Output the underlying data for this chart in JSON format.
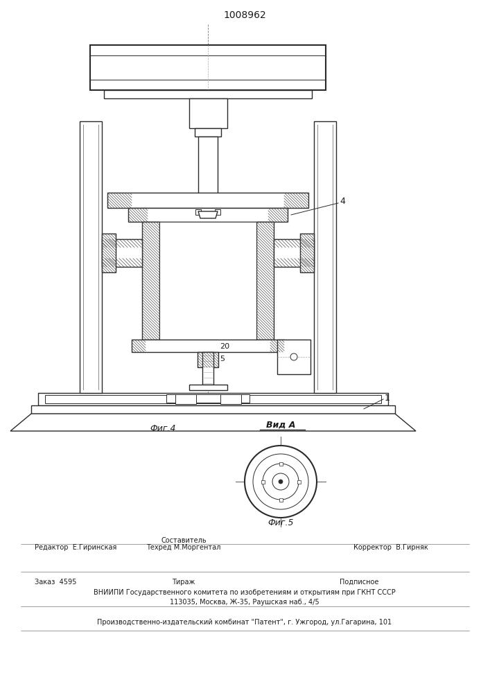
{
  "title": "1008962",
  "fig4_label": "Фиг.4",
  "fig5_label": "Фиг.5",
  "vid_a_label": "Вид А",
  "label_4": "4",
  "label_20": "20",
  "label_5": "5",
  "label_1": "1",
  "editor_line": "Редактор  Е.Гиринская",
  "sostavitel_label": "Составитель",
  "tehred_line": "Техред М.Моргентал",
  "korrektor_line": "Корректор  В.Гирняк",
  "zakaz_line": "Заказ  4595",
  "tirazh_label": "Тираж",
  "podpisnoe_label": "Подписное",
  "vniiipi_line": "ВНИИПИ Государственного комитета по изобретениям и открытиям при ГКНТ СССР",
  "address_line": "113035, Москва, Ж-35, Раушская наб., 4/5",
  "factory_line": "Производственно-издательский комбинат \"Патент\", г. Ужгород, ул.Гагарина, 101",
  "bg_color": "#ffffff",
  "line_color": "#2a2a2a",
  "hatch_color": "#555555",
  "text_color": "#1a1a1a"
}
